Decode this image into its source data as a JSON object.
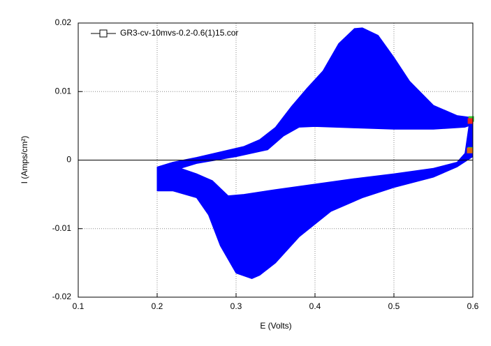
{
  "chart_data": {
    "type": "area",
    "xlabel": "E (Volts)",
    "ylabel": "I (Amps/cm²)",
    "xlim": [
      0.1,
      0.6
    ],
    "ylim": [
      -0.02,
      0.02
    ],
    "xticks": [
      0.1,
      0.2,
      0.3,
      0.4,
      0.5,
      0.6
    ],
    "yticks": [
      -0.02,
      -0.01,
      0,
      0.01,
      0.02
    ],
    "grid": true,
    "zero_line": true,
    "legend": "upper left",
    "series": [
      {
        "name": "GR3-cv-10mvs-0.2-0.6(1)15.cor",
        "color": "#0000ff",
        "x": [
          0.6,
          0.58,
          0.55,
          0.52,
          0.5,
          0.48,
          0.46,
          0.45,
          0.43,
          0.41,
          0.39,
          0.37,
          0.35,
          0.33,
          0.31,
          0.28,
          0.25,
          0.22,
          0.2,
          0.2,
          0.22,
          0.25,
          0.265,
          0.28,
          0.3,
          0.32,
          0.33,
          0.35,
          0.38,
          0.42,
          0.46,
          0.5,
          0.55,
          0.58,
          0.6,
          null,
          0.595,
          0.59,
          0.55,
          0.5,
          0.45,
          0.4,
          0.38,
          0.36,
          0.34,
          0.3,
          0.25,
          0.23,
          0.25,
          0.27,
          0.29,
          0.31,
          0.35,
          0.4,
          0.45,
          0.5,
          0.55,
          0.58,
          0.59
        ],
        "y": [
          0.0062,
          0.0065,
          0.008,
          0.0115,
          0.015,
          0.0182,
          0.0193,
          0.0192,
          0.017,
          0.013,
          0.0105,
          0.0078,
          0.0048,
          0.003,
          0.002,
          0.0012,
          0.0004,
          -0.0003,
          -0.001,
          -0.0045,
          -0.0045,
          -0.0055,
          -0.008,
          -0.0125,
          -0.0165,
          -0.0173,
          -0.0168,
          -0.015,
          -0.0112,
          -0.0075,
          -0.0055,
          -0.004,
          -0.0025,
          -0.001,
          0.0005,
          null,
          0.005,
          0.0048,
          0.0045,
          0.0045,
          0.0047,
          0.0049,
          0.0048,
          0.0035,
          0.0015,
          0.0005,
          -0.0005,
          -0.0012,
          -0.002,
          -0.003,
          -0.0052,
          -0.005,
          -0.0043,
          -0.0035,
          -0.0027,
          -0.002,
          -0.0012,
          -0.0003,
          0.001
        ]
      }
    ],
    "markers": [
      {
        "x": 0.598,
        "y": 0.006,
        "color": "#33cc33"
      },
      {
        "x": 0.597,
        "y": 0.0057,
        "color": "#ee2222"
      },
      {
        "x": 0.597,
        "y": 0.0015,
        "color": "#33cc33"
      },
      {
        "x": 0.596,
        "y": 0.0014,
        "color": "#dd6611"
      }
    ]
  }
}
